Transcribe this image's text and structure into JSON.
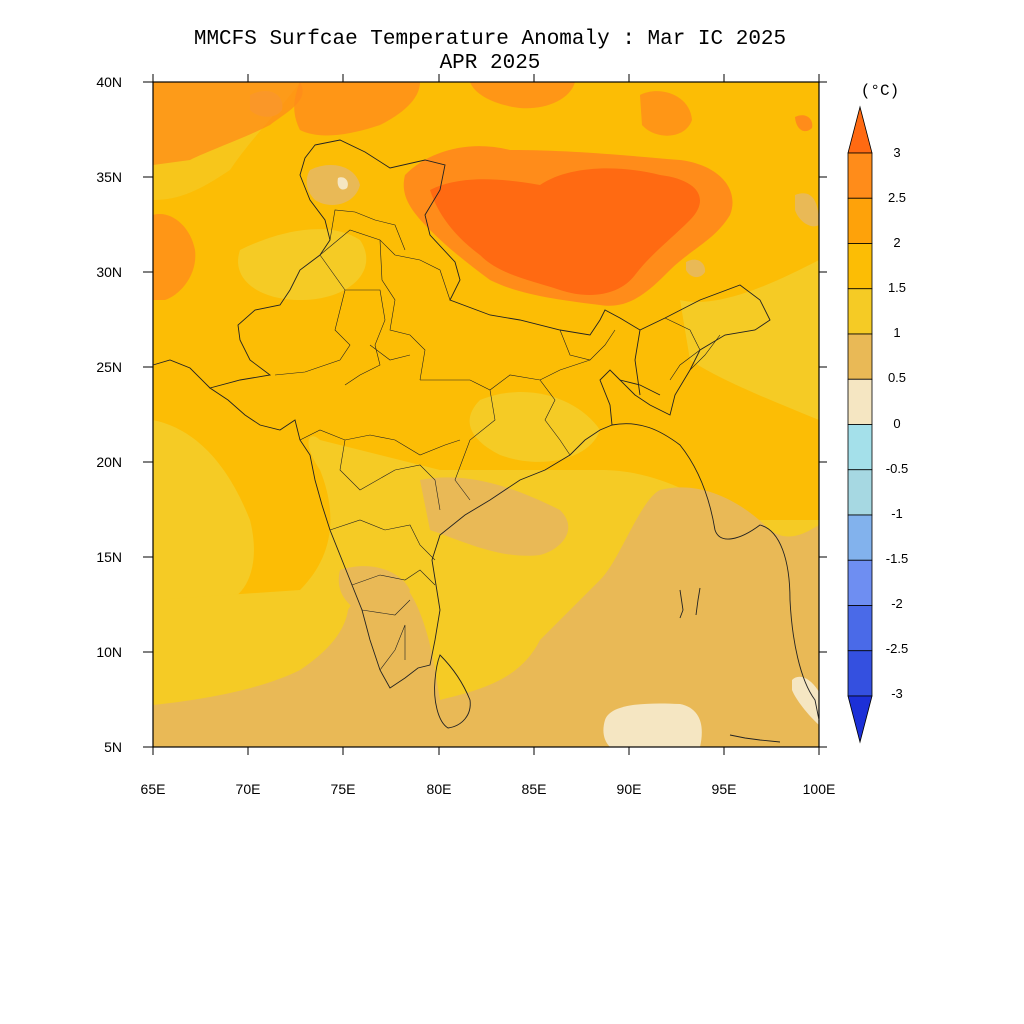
{
  "title": "MMCFS Surfcae Temperature Anomaly : Mar IC 2025",
  "subtitle": "APR 2025",
  "units": "(°C)",
  "map": {
    "lon_range": [
      65,
      100
    ],
    "lat_range": [
      5,
      40
    ],
    "lon_ticks": [
      "65E",
      "70E",
      "75E",
      "80E",
      "85E",
      "90E",
      "95E",
      "100E"
    ],
    "lat_ticks": [
      "40N",
      "35N",
      "30N",
      "25N",
      "20N",
      "15N",
      "10N",
      "5N"
    ]
  },
  "colorbar": {
    "labels": [
      "3",
      "2.5",
      "2",
      "1.5",
      "1",
      "0.5",
      "0",
      "-0.5",
      "-1",
      "-1.5",
      "-2",
      "-2.5",
      "-3"
    ],
    "colors": [
      "#ff6a12",
      "#ff8c1a",
      "#fea20a",
      "#fcbd05",
      "#f5cb25",
      "#e9b956",
      "#f5e6c2",
      "#a4e0ea",
      "#a6d8e2",
      "#82b2ed",
      "#6e8ef2",
      "#4a6ae8",
      "#3450e0",
      "#1c30d8"
    ]
  }
}
